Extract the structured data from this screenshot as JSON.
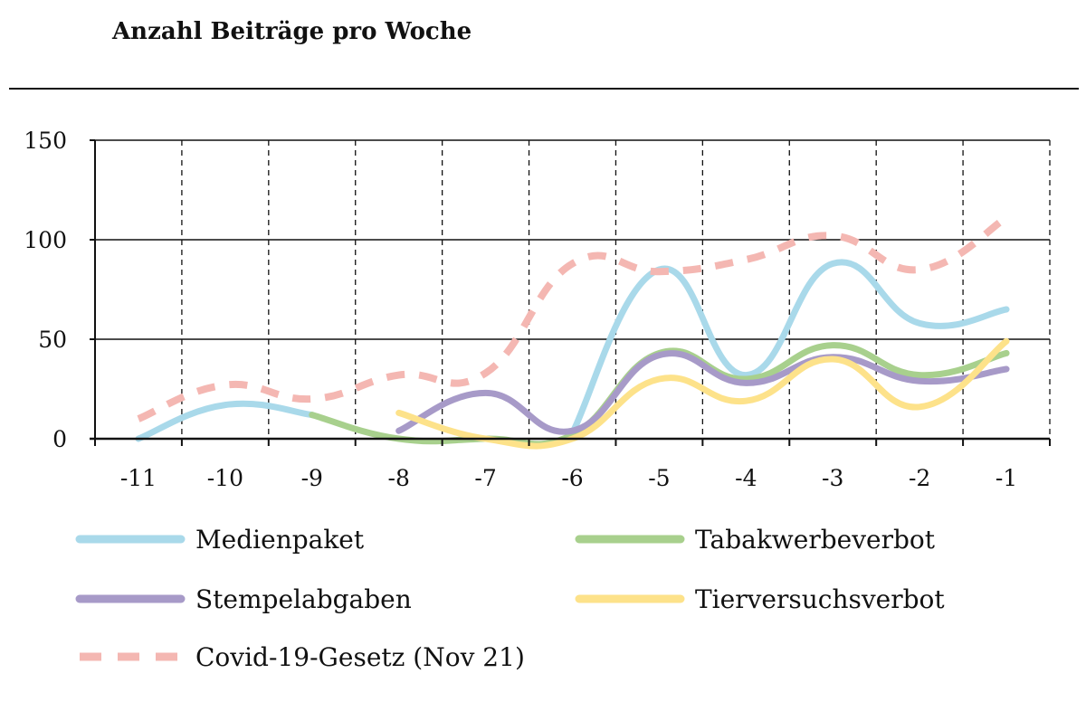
{
  "chart_data": {
    "type": "line",
    "title": "Anzahl Beiträge pro Woche",
    "xlabel": "",
    "ylabel": "",
    "x": [
      "-11",
      "-10",
      "-9",
      "-8",
      "-7",
      "-6",
      "-5",
      "-4",
      "-3",
      "-2",
      "-1"
    ],
    "ylim": [
      0,
      150
    ],
    "yticks": [
      "0",
      "50",
      "100",
      "150"
    ],
    "grid": {
      "horizontal": "solid",
      "vertical": "dashed"
    },
    "legend_position": "bottom",
    "series": [
      {
        "name": "Medienpaket",
        "color": "#a9d9ea",
        "style": "solid",
        "values": [
          0,
          17,
          12,
          null,
          null,
          3,
          85,
          32,
          88,
          58,
          65
        ]
      },
      {
        "name": "Tabakwerbeverbot",
        "color": "#a8d08d",
        "style": "solid",
        "values": [
          null,
          null,
          12,
          0,
          0,
          2,
          43,
          30,
          47,
          32,
          43
        ]
      },
      {
        "name": "Stempelabgaben",
        "color": "#a79ac8",
        "style": "solid",
        "values": [
          null,
          null,
          null,
          4,
          23,
          4,
          42,
          28,
          41,
          29,
          35
        ]
      },
      {
        "name": "Tierversuchsverbot",
        "color": "#fde28a",
        "style": "solid",
        "values": [
          null,
          null,
          null,
          13,
          0,
          0,
          30,
          19,
          40,
          16,
          49
        ]
      },
      {
        "name": "Covid-19-Gesetz (Nov 21)",
        "color": "#f4b7b2",
        "style": "dashed",
        "values": [
          10,
          27,
          20,
          32,
          33,
          88,
          84,
          90,
          102,
          85,
          111
        ]
      }
    ]
  }
}
